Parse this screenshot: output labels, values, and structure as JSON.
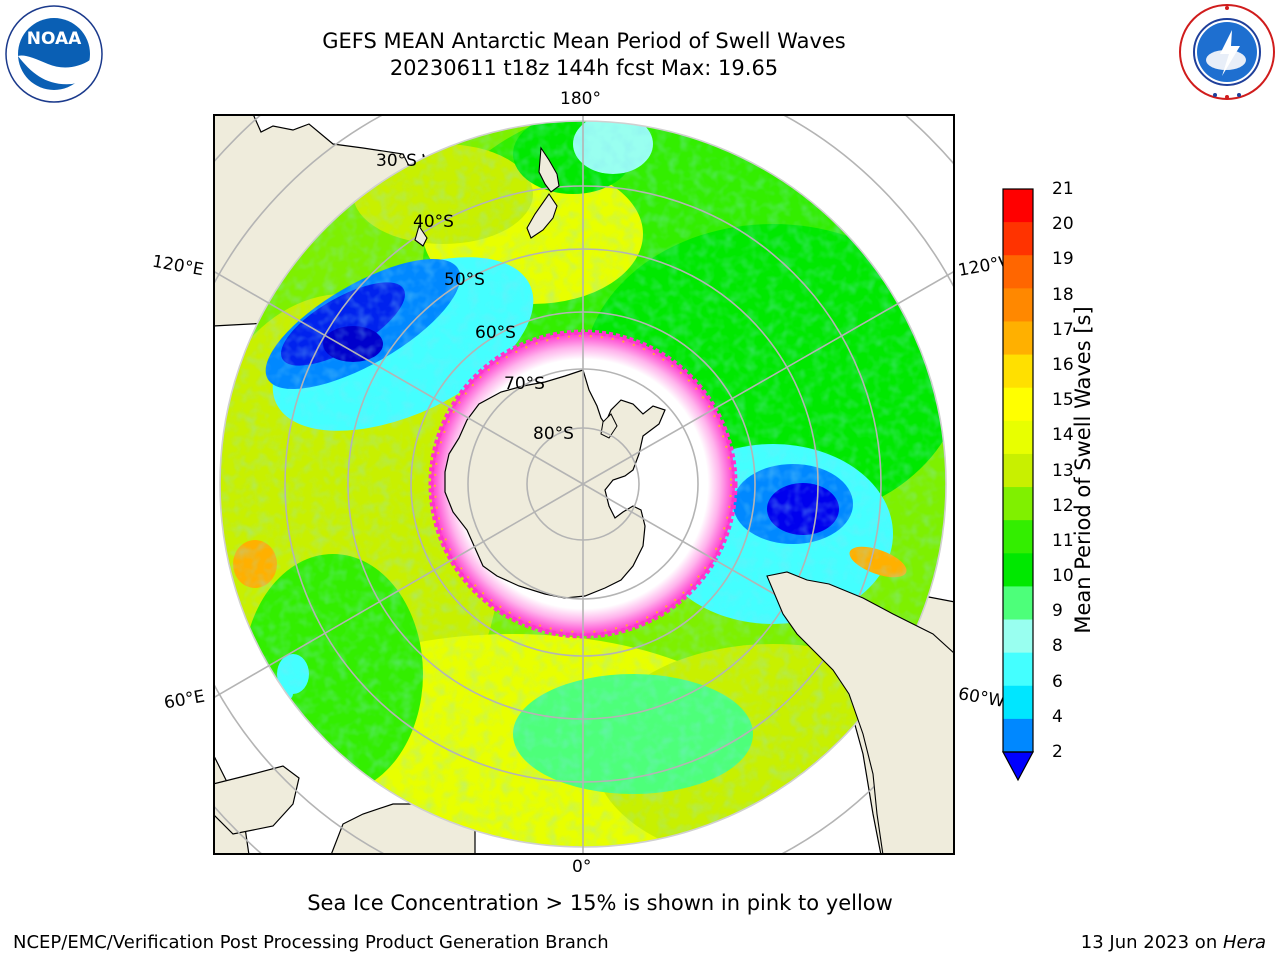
{
  "title_line1": "GEFS MEAN Antarctic Mean Period of Swell Waves",
  "title_line2": "20230611 t18z 144h fcst   Max: 19.65",
  "logos": {
    "left": {
      "name": "NOAA",
      "text": "NOAA",
      "ring_text": "NATIONAL OCEANIC AND ATMOSPHERIC ADMINISTRATION · U.S. DEPARTMENT OF COMMERCE"
    },
    "right": {
      "name": "National Weather Service",
      "ring_text": "NATIONAL WEATHER SERVICE"
    }
  },
  "map": {
    "projection": "south-polar-stereographic",
    "lon_labels": [
      "180°",
      "120°E",
      "120°W",
      "60°E",
      "60°W",
      "0°"
    ],
    "lat_labels": [
      "30°S",
      "40°S",
      "50°S",
      "60°S",
      "70°S",
      "80°S"
    ],
    "colors": {
      "land": "#efecdc",
      "coast": "#000000",
      "grid": "#b4b4b4",
      "ice_pink": "#ff33cc",
      "ice_orange": "#ffaa33"
    }
  },
  "colorbar": {
    "label": "Mean Period of Swell Waves [s]",
    "ticks": [
      "21",
      "20",
      "19",
      "18",
      "17",
      "16",
      "15",
      "14",
      "13",
      "12",
      "11",
      "10",
      "9",
      "8",
      "6",
      "4",
      "2"
    ],
    "colors_top_to_bottom": [
      "#ff0000",
      "#ff3300",
      "#ff6600",
      "#ff8800",
      "#ffb000",
      "#ffe000",
      "#ffff00",
      "#e8ff00",
      "#c8f000",
      "#80f000",
      "#33ee00",
      "#00e800",
      "#4dff7a",
      "#99fff0",
      "#44ffff",
      "#00e6ff",
      "#0088ff"
    ],
    "extend_color": "#0000ff"
  },
  "caption": "Sea Ice Concentration > 15% is shown in pink to yellow",
  "footer_left": "NCEP/EMC/Verification Post Processing Product Generation Branch",
  "footer_right_prefix": "13 Jun 2023 on ",
  "footer_right_italic": "Hera"
}
